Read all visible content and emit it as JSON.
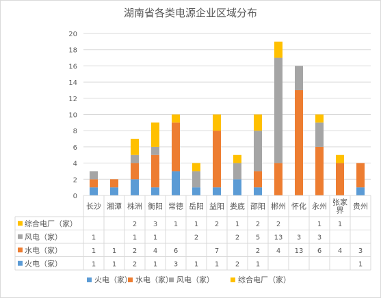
{
  "chart_data": {
    "type": "bar",
    "stacked": true,
    "title": "湖南省各类电源企业区域分布",
    "categories": [
      "长沙",
      "湘潭",
      "株洲",
      "衡阳",
      "常德",
      "岳阳",
      "益阳",
      "娄底",
      "邵阳",
      "郴州",
      "怀化",
      "永州",
      "张家界",
      "贵州"
    ],
    "category_display": [
      [
        "长沙"
      ],
      [
        "湘潭"
      ],
      [
        "株洲"
      ],
      [
        "衡阳"
      ],
      [
        "常德"
      ],
      [
        "岳阳"
      ],
      [
        "益阳"
      ],
      [
        "娄底"
      ],
      [
        "邵阳"
      ],
      [
        "郴州"
      ],
      [
        "怀化"
      ],
      [
        "永州"
      ],
      [
        "张家",
        "界"
      ],
      [
        "贵州"
      ]
    ],
    "series": [
      {
        "name": "火电（家）",
        "color": "#5B9BD5",
        "values": [
          1,
          1,
          2,
          1,
          3,
          1,
          1,
          2,
          1,
          null,
          null,
          null,
          null,
          1
        ]
      },
      {
        "name": "水电（家）",
        "color": "#ED7D31",
        "values": [
          1,
          1,
          2,
          4,
          6,
          null,
          7,
          null,
          2,
          4,
          13,
          6,
          4,
          3
        ]
      },
      {
        "name": "风电（家）",
        "color": "#A5A5A5",
        "values": [
          1,
          null,
          1,
          1,
          null,
          2,
          null,
          2,
          5,
          13,
          3,
          3,
          null,
          null
        ]
      },
      {
        "name": "综合电厂（家）",
        "color": "#FFC000",
        "values": [
          null,
          null,
          2,
          3,
          1,
          1,
          2,
          1,
          2,
          2,
          null,
          1,
          1,
          null
        ]
      }
    ],
    "table_order": [
      3,
      2,
      1,
      0
    ],
    "legend_order": [
      0,
      1,
      2,
      3
    ],
    "ylim": [
      0,
      20
    ],
    "yticks": [
      0,
      2,
      4,
      6,
      8,
      10,
      12,
      14,
      16,
      18,
      20
    ],
    "grid": true,
    "legend_position": "bottom",
    "data_table": true
  }
}
